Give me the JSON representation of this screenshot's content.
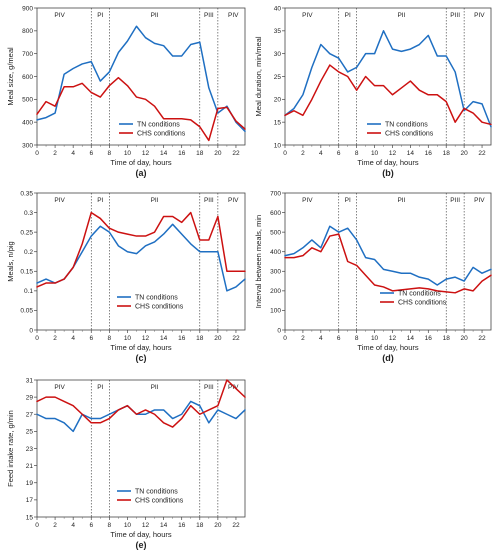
{
  "colors": {
    "tn": "#1f6fc2",
    "chs": "#cc1111"
  },
  "chart_data": [
    {
      "type": "line",
      "caption": "(a)",
      "xlabel": "Time of day, hours",
      "ylabel": "Meal size, g/meal",
      "xlim": [
        0,
        23
      ],
      "ylim": [
        300,
        900
      ],
      "xticks": [
        0,
        2,
        4,
        6,
        8,
        10,
        12,
        14,
        16,
        18,
        20,
        22
      ],
      "yticks": [
        300,
        400,
        500,
        600,
        700,
        800,
        900
      ],
      "period_lines": [
        6,
        8,
        18,
        20
      ],
      "periods": [
        {
          "label": "PIV",
          "x": 2.5
        },
        {
          "label": "PI",
          "x": 7
        },
        {
          "label": "PII",
          "x": 13
        },
        {
          "label": "PIII",
          "x": 19
        },
        {
          "label": "PIV",
          "x": 21.7
        }
      ],
      "legend_position": "bottom-left",
      "series": [
        {
          "name": "TN conditions",
          "color_key": "tn",
          "x": [
            0,
            1,
            2,
            3,
            4,
            5,
            6,
            7,
            8,
            9,
            10,
            11,
            12,
            13,
            14,
            15,
            16,
            17,
            18,
            19,
            20,
            21,
            22,
            23
          ],
          "y": [
            410,
            420,
            440,
            610,
            635,
            655,
            665,
            580,
            620,
            705,
            755,
            820,
            770,
            745,
            735,
            690,
            690,
            740,
            750,
            550,
            440,
            470,
            400,
            360
          ]
        },
        {
          "name": "CHS conditions",
          "color_key": "chs",
          "x": [
            0,
            1,
            2,
            3,
            4,
            5,
            6,
            7,
            8,
            9,
            10,
            11,
            12,
            13,
            14,
            15,
            16,
            17,
            18,
            19,
            20,
            21,
            22,
            23
          ],
          "y": [
            435,
            490,
            470,
            555,
            555,
            570,
            530,
            510,
            560,
            595,
            560,
            510,
            500,
            470,
            415,
            415,
            415,
            410,
            380,
            320,
            460,
            465,
            405,
            370
          ]
        }
      ]
    },
    {
      "type": "line",
      "caption": "(b)",
      "xlabel": "Time of day, hours",
      "ylabel": "Meal duration, min/meal",
      "xlim": [
        0,
        23
      ],
      "ylim": [
        10,
        40
      ],
      "xticks": [
        0,
        2,
        4,
        6,
        8,
        10,
        12,
        14,
        16,
        18,
        20,
        22
      ],
      "yticks": [
        10,
        15,
        20,
        25,
        30,
        35,
        40
      ],
      "period_lines": [
        6,
        8,
        18,
        20
      ],
      "periods": [
        {
          "label": "PIV",
          "x": 2.5
        },
        {
          "label": "PI",
          "x": 7
        },
        {
          "label": "PII",
          "x": 13
        },
        {
          "label": "PIII",
          "x": 19
        },
        {
          "label": "PIV",
          "x": 21.7
        }
      ],
      "legend_position": "bottom-left",
      "series": [
        {
          "name": "TN conditions",
          "color_key": "tn",
          "x": [
            0,
            1,
            2,
            3,
            4,
            5,
            6,
            7,
            8,
            9,
            10,
            11,
            12,
            13,
            14,
            15,
            16,
            17,
            18,
            19,
            20,
            21,
            22,
            23
          ],
          "y": [
            16.5,
            18,
            21,
            27,
            32,
            30,
            29,
            26,
            27,
            30,
            30,
            35,
            31,
            30.5,
            31,
            32,
            34,
            29.5,
            29.5,
            26,
            17.5,
            19.5,
            19,
            14
          ]
        },
        {
          "name": "CHS conditions",
          "color_key": "chs",
          "x": [
            0,
            1,
            2,
            3,
            4,
            5,
            6,
            7,
            8,
            9,
            10,
            11,
            12,
            13,
            14,
            15,
            16,
            17,
            18,
            19,
            20,
            21,
            22,
            23
          ],
          "y": [
            16.5,
            17.5,
            16.5,
            20,
            24,
            27.5,
            26,
            25,
            22,
            25,
            23,
            23,
            21,
            22.5,
            24,
            22,
            21,
            21,
            19.5,
            15,
            18,
            17,
            15,
            14.5
          ]
        }
      ]
    },
    {
      "type": "line",
      "caption": "(c)",
      "xlabel": "Time of day, hours",
      "ylabel": "Meals, n/pig",
      "xlim": [
        0,
        23
      ],
      "ylim": [
        0,
        0.35
      ],
      "xticks": [
        0,
        2,
        4,
        6,
        8,
        10,
        12,
        14,
        16,
        18,
        20,
        22
      ],
      "yticks": [
        0,
        0.05,
        0.1,
        0.15,
        0.2,
        0.25,
        0.3,
        0.35
      ],
      "yticklabels": [
        "0",
        "0.05",
        "0.1",
        "0.15",
        "0.2",
        "0.25",
        "0.3",
        "0.35"
      ],
      "period_lines": [
        6,
        8,
        18,
        20
      ],
      "periods": [
        {
          "label": "PIV",
          "x": 2.5
        },
        {
          "label": "PI",
          "x": 7
        },
        {
          "label": "PII",
          "x": 13
        },
        {
          "label": "PIII",
          "x": 19
        },
        {
          "label": "PIV",
          "x": 21.7
        }
      ],
      "legend_position": "bottom-center",
      "series": [
        {
          "name": "TN conditions",
          "color_key": "tn",
          "x": [
            0,
            1,
            2,
            3,
            4,
            5,
            6,
            7,
            8,
            9,
            10,
            11,
            12,
            13,
            14,
            15,
            16,
            17,
            18,
            19,
            20,
            21,
            22,
            23
          ],
          "y": [
            0.12,
            0.13,
            0.12,
            0.13,
            0.16,
            0.2,
            0.24,
            0.265,
            0.25,
            0.215,
            0.2,
            0.195,
            0.215,
            0.225,
            0.245,
            0.27,
            0.245,
            0.22,
            0.2,
            0.2,
            0.2,
            0.1,
            0.11,
            0.13
          ]
        },
        {
          "name": "CHS conditions",
          "color_key": "chs",
          "x": [
            0,
            1,
            2,
            3,
            4,
            5,
            6,
            7,
            8,
            9,
            10,
            11,
            12,
            13,
            14,
            15,
            16,
            17,
            18,
            19,
            20,
            21,
            22,
            23
          ],
          "y": [
            0.11,
            0.12,
            0.12,
            0.13,
            0.16,
            0.22,
            0.3,
            0.285,
            0.26,
            0.25,
            0.245,
            0.24,
            0.24,
            0.25,
            0.29,
            0.29,
            0.275,
            0.3,
            0.23,
            0.23,
            0.29,
            0.15,
            0.15,
            0.15
          ]
        }
      ]
    },
    {
      "type": "line",
      "caption": "(d)",
      "xlabel": "Time of day, hours",
      "ylabel": "Interval between meals, min",
      "xlim": [
        0,
        23
      ],
      "ylim": [
        0,
        700
      ],
      "xticks": [
        0,
        2,
        4,
        6,
        8,
        10,
        12,
        14,
        16,
        18,
        20,
        22
      ],
      "yticks": [
        0,
        100,
        200,
        300,
        400,
        500,
        600,
        700
      ],
      "period_lines": [
        6,
        8,
        18,
        20
      ],
      "periods": [
        {
          "label": "PIV",
          "x": 2.5
        },
        {
          "label": "PI",
          "x": 7
        },
        {
          "label": "PII",
          "x": 13
        },
        {
          "label": "PIII",
          "x": 19
        },
        {
          "label": "PIV",
          "x": 21.7
        }
      ],
      "legend_position": "bottom-center",
      "series": [
        {
          "name": "TN conditions",
          "color_key": "tn",
          "x": [
            0,
            1,
            2,
            3,
            4,
            5,
            6,
            7,
            8,
            9,
            10,
            11,
            12,
            13,
            14,
            15,
            16,
            17,
            18,
            19,
            20,
            21,
            22,
            23
          ],
          "y": [
            380,
            390,
            420,
            460,
            420,
            530,
            500,
            520,
            460,
            370,
            360,
            310,
            300,
            290,
            290,
            270,
            260,
            230,
            260,
            270,
            250,
            320,
            290,
            310
          ]
        },
        {
          "name": "CHS conditions",
          "color_key": "chs",
          "x": [
            0,
            1,
            2,
            3,
            4,
            5,
            6,
            7,
            8,
            9,
            10,
            11,
            12,
            13,
            14,
            15,
            16,
            17,
            18,
            19,
            20,
            21,
            22,
            23
          ],
          "y": [
            370,
            370,
            380,
            420,
            400,
            480,
            490,
            350,
            330,
            280,
            230,
            220,
            200,
            205,
            210,
            215,
            210,
            200,
            195,
            190,
            210,
            200,
            250,
            280
          ]
        }
      ]
    },
    {
      "type": "line",
      "caption": "(e)",
      "xlabel": "Time of day, hours",
      "ylabel": "Feed intake rate, g/min",
      "xlim": [
        0,
        23
      ],
      "ylim": [
        15,
        31
      ],
      "xticks": [
        0,
        2,
        4,
        6,
        8,
        10,
        12,
        14,
        16,
        18,
        20,
        22
      ],
      "yticks": [
        15,
        17,
        19,
        21,
        23,
        25,
        27,
        29,
        31
      ],
      "period_lines": [
        6,
        8,
        18,
        20
      ],
      "periods": [
        {
          "label": "PIV",
          "x": 2.5
        },
        {
          "label": "PI",
          "x": 7
        },
        {
          "label": "PII",
          "x": 13
        },
        {
          "label": "PIII",
          "x": 19
        },
        {
          "label": "PIV",
          "x": 21.7
        }
      ],
      "legend_position": "bottom-center",
      "series": [
        {
          "name": "TN conditions",
          "color_key": "tn",
          "x": [
            0,
            1,
            2,
            3,
            4,
            5,
            6,
            7,
            8,
            9,
            10,
            11,
            12,
            13,
            14,
            15,
            16,
            17,
            18,
            19,
            20,
            21,
            22,
            23
          ],
          "y": [
            27,
            26.5,
            26.5,
            26,
            25,
            27,
            26.5,
            26.5,
            27,
            27.5,
            28,
            27,
            27,
            27.5,
            27.5,
            26.5,
            27,
            28.5,
            28,
            26,
            27.5,
            27,
            26.5,
            27.5
          ]
        },
        {
          "name": "CHS conditions",
          "color_key": "chs",
          "x": [
            0,
            1,
            2,
            3,
            4,
            5,
            6,
            7,
            8,
            9,
            10,
            11,
            12,
            13,
            14,
            15,
            16,
            17,
            18,
            19,
            20,
            21,
            22,
            23
          ],
          "y": [
            28.5,
            29,
            29,
            28.5,
            28,
            27,
            26,
            26,
            26.5,
            27.5,
            28,
            27,
            27.5,
            27,
            26,
            25.5,
            26.5,
            28,
            27,
            27.5,
            28,
            31,
            30,
            29
          ]
        }
      ]
    }
  ]
}
